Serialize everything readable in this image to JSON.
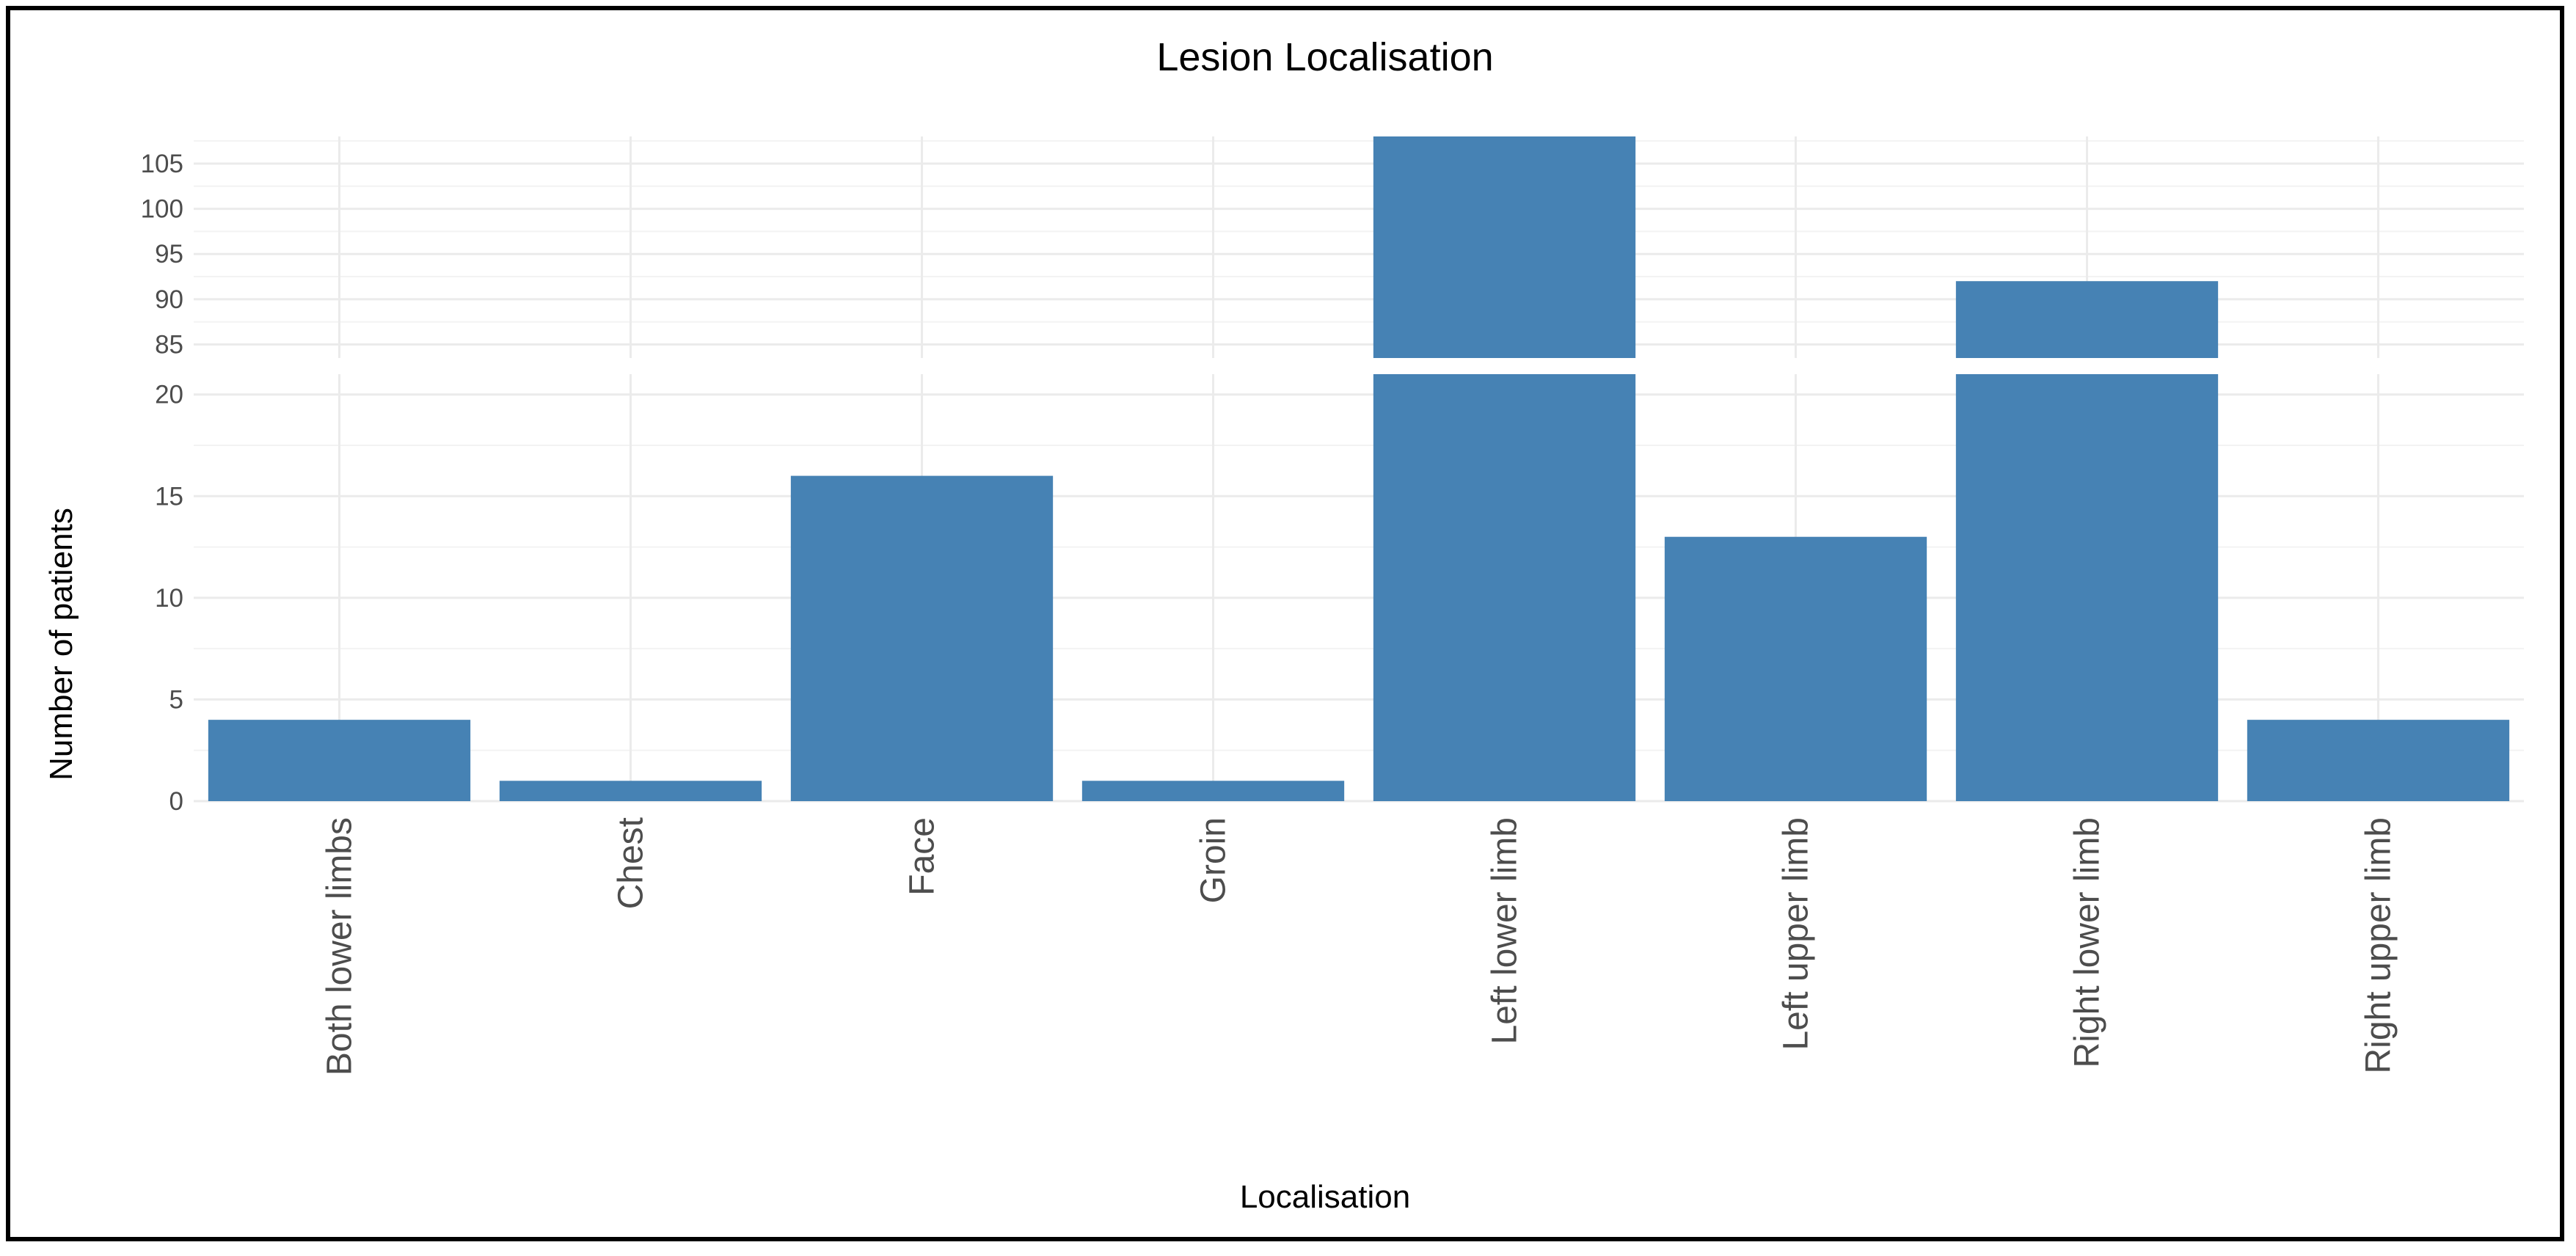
{
  "chart_data": {
    "type": "bar",
    "title": "Lesion Localisation",
    "xlabel": "Localisation",
    "ylabel": "Number of patients",
    "categories": [
      "Both lower limbs",
      "Chest",
      "Face",
      "Groin",
      "Left lower limb",
      "Left upper limb",
      "Right lower limb",
      "Right upper limb"
    ],
    "values": [
      4,
      1,
      16,
      1,
      108,
      13,
      92,
      4
    ],
    "axis_break": true,
    "lower_panel": {
      "ylim": [
        0,
        21
      ],
      "ticks": [
        0,
        5,
        10,
        15,
        20
      ]
    },
    "upper_panel": {
      "ylim": [
        83.5,
        108
      ],
      "ticks": [
        85,
        90,
        95,
        100,
        105
      ]
    },
    "bar_color": "#4682b4",
    "grid": true,
    "legend": "none"
  }
}
